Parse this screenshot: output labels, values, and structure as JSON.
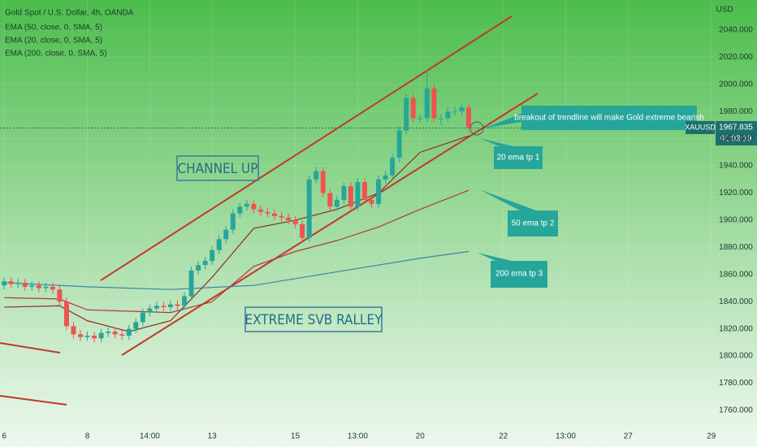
{
  "chart_data": {
    "type": "candlestick",
    "title": "Gold Spot / U.S. Dollar, 4h, OANDA",
    "y_axis_label": "USD",
    "symbol": "XAUUSD",
    "last_price": 1967.835,
    "countdown": "01:03:19",
    "up_color": "#26a69a",
    "down_color": "#ef5350",
    "x": [
      0,
      1,
      2,
      3,
      4,
      5,
      6,
      7,
      8,
      9,
      10,
      11,
      12,
      13,
      14,
      15,
      16,
      17,
      18,
      19,
      20,
      21,
      22,
      23,
      24,
      25,
      26,
      27,
      28,
      29,
      30,
      31,
      32,
      33,
      34,
      35,
      36,
      37,
      38,
      39,
      40,
      41,
      42,
      43,
      44,
      45,
      46,
      47,
      48,
      49,
      50,
      51,
      52,
      53,
      54,
      55,
      56,
      57,
      58,
      59,
      60,
      61,
      62,
      63,
      64,
      65,
      66,
      67
    ],
    "open": [
      1852,
      1855,
      1853,
      1854,
      1851,
      1852,
      1850,
      1851,
      1849,
      1840,
      1822,
      1816,
      1814,
      1815,
      1813,
      1817,
      1818,
      1816,
      1815,
      1820,
      1825,
      1832,
      1835,
      1837,
      1836,
      1838,
      1837,
      1844,
      1863,
      1867,
      1870,
      1878,
      1886,
      1893,
      1905,
      1910,
      1912,
      1908,
      1906,
      1905,
      1903,
      1902,
      1900,
      1897,
      1887,
      1930,
      1936,
      1920,
      1910,
      1915,
      1925,
      1910,
      1928,
      1915,
      1912,
      1930,
      1933,
      1946,
      1966,
      1990,
      1975,
      1975,
      1997,
      1975,
      1975,
      1980,
      1980,
      1983
    ],
    "high": [
      1858,
      1858,
      1857,
      1857,
      1855,
      1855,
      1854,
      1854,
      1852,
      1843,
      1825,
      1819,
      1818,
      1818,
      1820,
      1821,
      1821,
      1819,
      1823,
      1828,
      1835,
      1838,
      1840,
      1840,
      1841,
      1841,
      1847,
      1866,
      1870,
      1873,
      1881,
      1889,
      1896,
      1908,
      1913,
      1915,
      1915,
      1911,
      1909,
      1908,
      1906,
      1905,
      1903,
      1900,
      1933,
      1939,
      1939,
      1923,
      1918,
      1928,
      1928,
      1931,
      1931,
      1918,
      1933,
      1936,
      1949,
      1969,
      1993,
      1993,
      1978,
      2010,
      2000,
      1978,
      1983,
      1984,
      1986,
      1986
    ],
    "low": [
      1849,
      1850,
      1850,
      1848,
      1848,
      1847,
      1847,
      1846,
      1837,
      1819,
      1813,
      1811,
      1811,
      1810,
      1810,
      1814,
      1813,
      1812,
      1812,
      1817,
      1822,
      1829,
      1832,
      1833,
      1833,
      1834,
      1834,
      1841,
      1860,
      1864,
      1867,
      1875,
      1883,
      1890,
      1902,
      1907,
      1905,
      1903,
      1902,
      1900,
      1899,
      1897,
      1894,
      1884,
      1884,
      1927,
      1917,
      1907,
      1907,
      1912,
      1907,
      1907,
      1912,
      1909,
      1909,
      1927,
      1930,
      1943,
      1963,
      1972,
      1972,
      1972,
      1972,
      1970,
      1972,
      1977,
      1977,
      1965
    ],
    "close": [
      1855,
      1853,
      1854,
      1851,
      1852,
      1850,
      1851,
      1849,
      1840,
      1822,
      1816,
      1814,
      1815,
      1813,
      1817,
      1818,
      1816,
      1815,
      1820,
      1825,
      1832,
      1835,
      1837,
      1836,
      1838,
      1837,
      1844,
      1863,
      1867,
      1870,
      1878,
      1886,
      1893,
      1905,
      1910,
      1912,
      1908,
      1906,
      1905,
      1903,
      1902,
      1900,
      1897,
      1887,
      1930,
      1936,
      1920,
      1910,
      1915,
      1925,
      1910,
      1928,
      1915,
      1912,
      1930,
      1933,
      1946,
      1966,
      1990,
      1975,
      1975,
      1997,
      1975,
      1975,
      1980,
      1980,
      1983,
      1968
    ],
    "series": [
      {
        "name": "EMA (50, close, 0, SMA, 5)",
        "color": "#b03a3a",
        "x": [
          0,
          8,
          12,
          24,
          30,
          36,
          42,
          48,
          54,
          60,
          67
        ],
        "values": [
          1843,
          1842,
          1834,
          1832,
          1840,
          1866,
          1877,
          1885,
          1895,
          1908,
          1922
        ]
      },
      {
        "name": "EMA (20, close, 0, SMA, 5)",
        "color": "#8e2b2b",
        "x": [
          0,
          8,
          12,
          18,
          24,
          30,
          36,
          42,
          48,
          54,
          60,
          67
        ],
        "values": [
          1836,
          1837,
          1826,
          1818,
          1826,
          1858,
          1894,
          1900,
          1908,
          1920,
          1950,
          1962
        ]
      },
      {
        "name": "EMA (200, close, 0, SMA, 5)",
        "color": "#3a86a8",
        "x": [
          0,
          12,
          24,
          36,
          48,
          60,
          67
        ],
        "values": [
          1854,
          1851,
          1849,
          1852,
          1862,
          1872,
          1877
        ]
      }
    ],
    "xlim": [
      -0.6,
      102.5
    ],
    "xticks": [
      {
        "value": 0,
        "label": "6"
      },
      {
        "value": 12,
        "label": "8"
      },
      {
        "value": 21,
        "label": "14:00"
      },
      {
        "value": 30,
        "label": "13"
      },
      {
        "value": 42,
        "label": "15"
      },
      {
        "value": 51,
        "label": "13:00"
      },
      {
        "value": 60,
        "label": "20"
      },
      {
        "value": 72,
        "label": "22"
      },
      {
        "value": 81,
        "label": "13:00"
      },
      {
        "value": 90,
        "label": "27"
      },
      {
        "value": 102,
        "label": "29"
      }
    ],
    "ylim": [
      1748,
      2062.1
    ],
    "yticks": [
      {
        "value": 1760,
        "label": "1760.000"
      },
      {
        "value": 1780,
        "label": "1780.000"
      },
      {
        "value": 1800,
        "label": "1800.000"
      },
      {
        "value": 1820,
        "label": "1820.000"
      },
      {
        "value": 1840,
        "label": "1840.000"
      },
      {
        "value": 1860,
        "label": "1860.000"
      },
      {
        "value": 1880,
        "label": "1880.000"
      },
      {
        "value": 1900,
        "label": "1900.000"
      },
      {
        "value": 1920,
        "label": "1920.000"
      },
      {
        "value": 1940,
        "label": "1940.000"
      },
      {
        "value": 1960,
        "label": "1960.000"
      },
      {
        "value": 1980,
        "label": "1980.000"
      },
      {
        "value": 2000,
        "label": "2000.000"
      },
      {
        "value": 2020,
        "label": "2020.000"
      },
      {
        "value": 2040,
        "label": "2040.000"
      }
    ],
    "annotations": [
      "CHANNEL UP",
      "EXTREME SVB RALLEY",
      "breakout of trendline will make Gold extreme bearish",
      "20 ema tp 1",
      "50 ema tp 2",
      "200 ema tp 3"
    ]
  }
}
